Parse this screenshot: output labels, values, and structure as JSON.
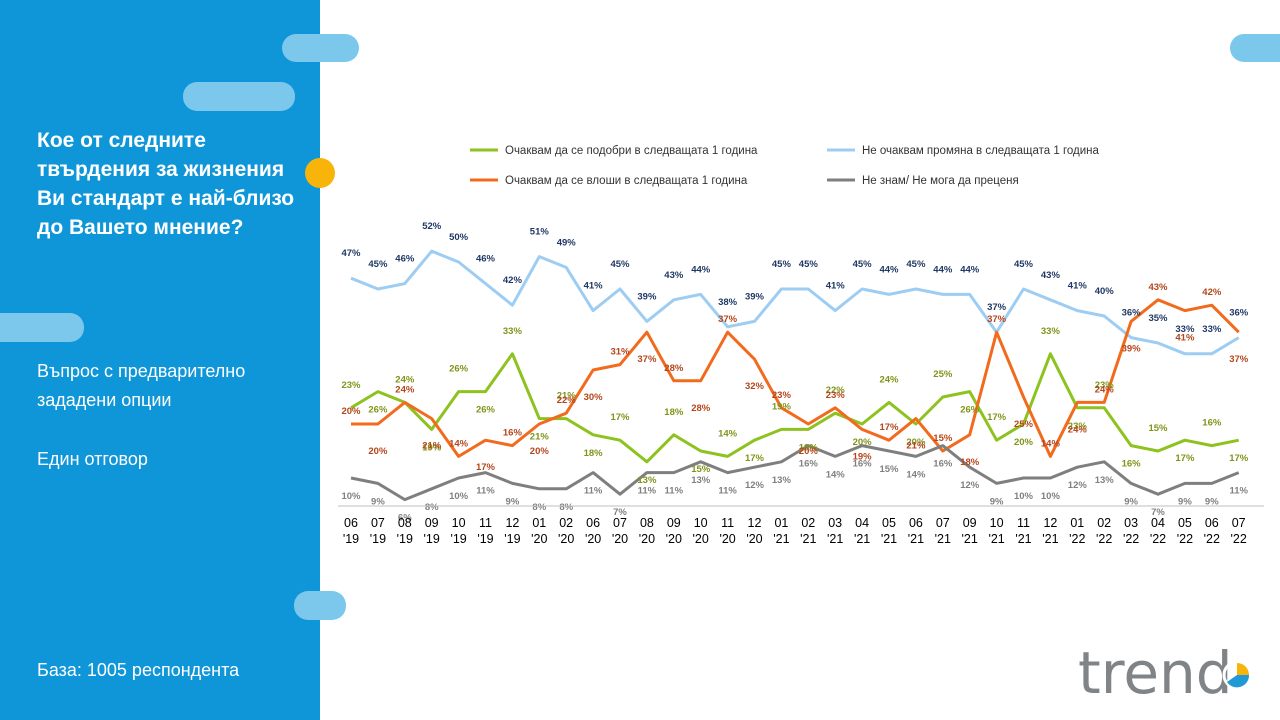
{
  "sidebar": {
    "question": "Кое от следните твърдения за жизнения Ви стандарт е най-близо до Вашето мнение?",
    "note1": "Въпрос с предварително зададени опции",
    "note2": "Един отговор",
    "base": "База:  1005 респондента"
  },
  "logo_text": "trend",
  "colors": {
    "sidebar": "#0e96d8",
    "accent_pill": "#7cc7ec",
    "accent_dot": "#f9b409"
  },
  "chart_data": {
    "type": "line",
    "categories": [
      "06 '19",
      "07 '19",
      "08 '19",
      "09 '19",
      "10 '19",
      "11 '19",
      "12 '19",
      "01 '20",
      "02 '20",
      "06 '20",
      "07 '20",
      "08 '20",
      "09 '20",
      "10 '20",
      "11 '20",
      "12 '20",
      "01 '21",
      "02 '21",
      "03 '21",
      "04 '21",
      "05 '21",
      "06 '21",
      "07 '21",
      "09 '21",
      "10 '21",
      "11 '21",
      "12 '21",
      "01 '22",
      "02 '22",
      "03 '22",
      "04 '22",
      "05 '22",
      "06 '22",
      "07 '22"
    ],
    "series": [
      {
        "name": "Очаквам да се подобри в следващата 1 година",
        "color": "#8dc21f",
        "label_color": "#7f9418",
        "values": [
          23,
          26,
          24,
          19,
          26,
          26,
          33,
          21,
          21,
          18,
          17,
          13,
          18,
          15,
          14,
          17,
          19,
          19,
          22,
          20,
          24,
          20,
          25,
          26,
          17,
          20,
          33,
          23,
          23,
          16,
          15,
          17,
          16,
          17
        ]
      },
      {
        "name": "Не очаквам промяна в следващата 1 година",
        "color": "#9dcdf2",
        "label_color": "#1f3864",
        "values": [
          47,
          45,
          46,
          52,
          50,
          46,
          42,
          51,
          49,
          41,
          45,
          39,
          43,
          44,
          38,
          39,
          45,
          45,
          41,
          45,
          44,
          45,
          44,
          44,
          37,
          45,
          43,
          41,
          40,
          36,
          35,
          33,
          33,
          36
        ]
      },
      {
        "name": "Очаквам да се влоши в следващата 1 година",
        "color": "#f26b1d",
        "label_color": "#b5451b",
        "values": [
          20,
          20,
          24,
          21,
          14,
          17,
          16,
          20,
          22,
          30,
          31,
          37,
          28,
          28,
          37,
          32,
          23,
          20,
          23,
          19,
          17,
          21,
          15,
          18,
          37,
          25,
          14,
          24,
          24,
          39,
          43,
          41,
          42,
          37
        ]
      },
      {
        "name": "Не знам/ Не мога да преценя",
        "color": "#7f7f7f",
        "label_color": "#808080",
        "values": [
          10,
          9,
          6,
          8,
          10,
          11,
          9,
          8,
          8,
          11,
          7,
          11,
          11,
          13,
          11,
          12,
          13,
          16,
          14,
          16,
          15,
          14,
          16,
          12,
          9,
          10,
          10,
          12,
          13,
          9,
          7,
          9,
          9,
          11
        ]
      }
    ],
    "value_suffix": "%",
    "legend_position": "top",
    "grid": false
  }
}
